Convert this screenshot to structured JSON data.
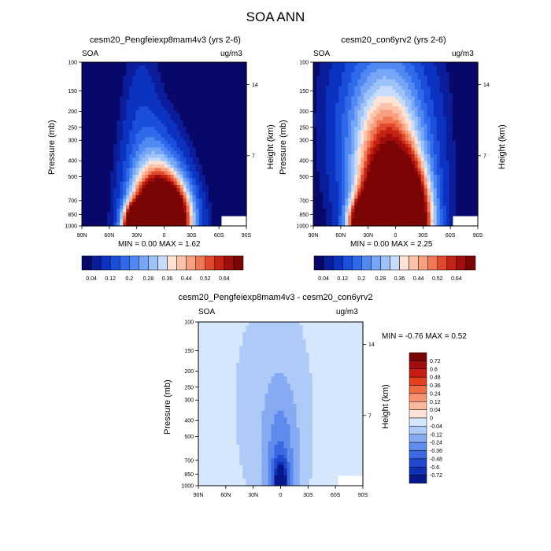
{
  "main_title": "SOA ANN",
  "panels": [
    {
      "title": "cesm20_Pengfeiexp8mam4v3 (yrs 2-6)",
      "var_label": "SOA",
      "units": "ug/m3",
      "y_axis_title": "Pressure (mb)",
      "right_axis_title": "Height (km)",
      "stats": "MIN =  0.00  MAX =   1.62"
    },
    {
      "title": "cesm20_con6yrv2 (yrs 2-6)",
      "var_label": "SOA",
      "units": "ug/m3",
      "y_axis_title": "Pressure (mb)",
      "right_axis_title": "Height (km)",
      "stats": "MIN =  0.00  MAX =   2.25"
    },
    {
      "title": "cesm20_Pengfeiexp8mam4v3 - cesm20_con6yrv2",
      "var_label": "SOA",
      "units": "ug/m3",
      "y_axis_title": "Pressure (mb)",
      "right_axis_title": "Height (km)",
      "stats": "MIN =  -0.76  MAX =   0.52"
    }
  ],
  "chart_data": [
    {
      "type": "heatmap",
      "title": "cesm20_Pengfeiexp8mam4v3 (yrs 2-6)",
      "xlabel": "",
      "ylabel": "Pressure (mb)",
      "y2label": "Height (km)",
      "x_ticks": [
        "90N",
        "60N",
        "30N",
        "0",
        "30S",
        "60S",
        "90S"
      ],
      "y_ticks": [
        100,
        150,
        200,
        250,
        300,
        400,
        500,
        700,
        850,
        1000
      ],
      "y_tick_labels": [
        "100",
        "150",
        "200",
        "250",
        "300",
        "400",
        "500",
        "700",
        "850",
        "1000"
      ],
      "y2_ticks": [
        "14",
        "7"
      ],
      "y_scale": "log",
      "min": 0.0,
      "max": 1.62,
      "colorbar_levels": [
        "0.04",
        "0.12",
        "0.2",
        "0.28",
        "0.36",
        "0.44",
        "0.52",
        "0.64"
      ]
    },
    {
      "type": "heatmap",
      "title": "cesm20_con6yrv2 (yrs 2-6)",
      "xlabel": "",
      "ylabel": "Pressure (mb)",
      "y2label": "Height (km)",
      "x_ticks": [
        "90N",
        "60N",
        "30N",
        "0",
        "30S",
        "60S",
        "90S"
      ],
      "y_ticks": [
        100,
        150,
        200,
        250,
        300,
        400,
        500,
        700,
        850,
        1000
      ],
      "y_tick_labels": [
        "100",
        "150",
        "200",
        "250",
        "300",
        "400",
        "500",
        "700",
        "850",
        "1000"
      ],
      "y2_ticks": [
        "14",
        "7"
      ],
      "y_scale": "log",
      "min": 0.0,
      "max": 2.25,
      "colorbar_levels": [
        "0.04",
        "0.12",
        "0.2",
        "0.28",
        "0.36",
        "0.44",
        "0.52",
        "0.64"
      ]
    },
    {
      "type": "heatmap",
      "title": "cesm20_Pengfeiexp8mam4v3 - cesm20_con6yrv2",
      "xlabel": "",
      "ylabel": "Pressure (mb)",
      "y2label": "Height (km)",
      "x_ticks": [
        "90N",
        "60N",
        "30N",
        "0",
        "30S",
        "60S",
        "90S"
      ],
      "y_ticks": [
        100,
        150,
        200,
        250,
        300,
        400,
        500,
        700,
        850,
        1000
      ],
      "y_tick_labels": [
        "100",
        "150",
        "200",
        "250",
        "300",
        "400",
        "500",
        "700",
        "850",
        "1000"
      ],
      "y2_ticks": [
        "14",
        "7"
      ],
      "y_scale": "log",
      "min": -0.76,
      "max": 0.52,
      "colorbar_levels": [
        "0.72",
        "0.6",
        "0.48",
        "0.36",
        "0.24",
        "0.12",
        "0.04",
        "0",
        "-0.04",
        "-0.12",
        "-0.24",
        "-0.36",
        "-0.48",
        "-0.6",
        "-0.72"
      ]
    }
  ],
  "palettes": {
    "absolute": [
      "#08086b",
      "#0b1d9a",
      "#0c33c0",
      "#1a4fdb",
      "#2f6aeb",
      "#5089f2",
      "#76a6f5",
      "#9cc2f8",
      "#c7dcfb",
      "#ffe4d6",
      "#fcc3aa",
      "#f8a07f",
      "#f07753",
      "#e0492b",
      "#c32313",
      "#a10d0d",
      "#7a0505"
    ],
    "difference": [
      "#7a0505",
      "#a10d0d",
      "#c81d12",
      "#e4401f",
      "#f16a42",
      "#f79270",
      "#fbb89d",
      "#fde4d6",
      "#d6e6fc",
      "#aecbf8",
      "#86abf3",
      "#5f8bee",
      "#3b69e3",
      "#2148cf",
      "#1030b3",
      "#08188a"
    ]
  }
}
